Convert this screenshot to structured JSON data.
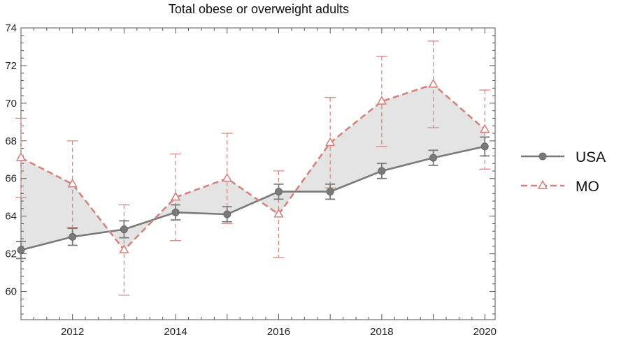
{
  "chart_data": {
    "type": "line",
    "title": "Total obese or overweight adults",
    "xlabel": "",
    "ylabel": "",
    "x": [
      2011,
      2012,
      2013,
      2014,
      2015,
      2016,
      2017,
      2018,
      2019,
      2020
    ],
    "xlim": [
      2011,
      2020.2
    ],
    "ylim": [
      58.5,
      74
    ],
    "x_ticks": [
      2012,
      2014,
      2016,
      2018,
      2020
    ],
    "y_ticks": [
      60,
      62,
      64,
      66,
      68,
      70,
      72,
      74
    ],
    "grid": false,
    "legend_position": "right",
    "fill_between_series": true,
    "series": [
      {
        "name": "USA",
        "color": "#7a7a7a",
        "marker": "circle",
        "line_style": "solid",
        "values": [
          62.2,
          62.9,
          63.3,
          64.2,
          64.1,
          65.3,
          65.3,
          66.4,
          67.1,
          67.7
        ],
        "error": [
          0.45,
          0.45,
          0.45,
          0.4,
          0.4,
          0.4,
          0.4,
          0.4,
          0.4,
          0.5
        ]
      },
      {
        "name": "MO",
        "color": "#d4837f",
        "marker": "triangle-open",
        "line_style": "dashed",
        "values": [
          67.1,
          65.7,
          62.2,
          65.0,
          66.0,
          64.1,
          67.9,
          70.1,
          71.0,
          68.6
        ],
        "error": [
          2.1,
          2.3,
          2.4,
          2.3,
          2.4,
          2.3,
          2.4,
          2.4,
          2.3,
          2.1
        ]
      }
    ]
  }
}
